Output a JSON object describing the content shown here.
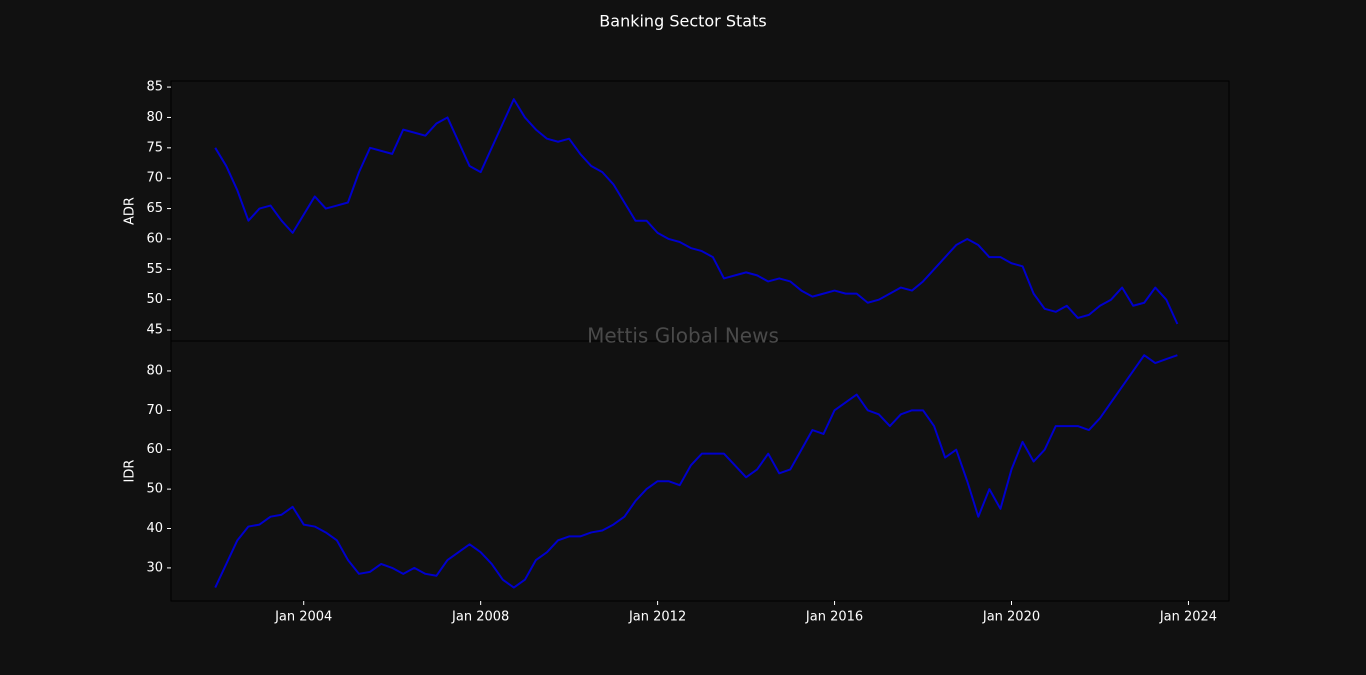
{
  "title": "Banking Sector Stats",
  "watermark": "Mettis Global News",
  "chart_data": [
    {
      "type": "line",
      "ylabel": "ADR",
      "x": [
        "2002-01",
        "2002-04",
        "2002-07",
        "2002-10",
        "2003-01",
        "2003-04",
        "2003-07",
        "2003-10",
        "2004-01",
        "2004-04",
        "2004-07",
        "2004-10",
        "2005-01",
        "2005-04",
        "2005-07",
        "2005-10",
        "2006-01",
        "2006-04",
        "2006-07",
        "2006-10",
        "2007-01",
        "2007-04",
        "2007-07",
        "2007-10",
        "2008-01",
        "2008-04",
        "2008-07",
        "2008-10",
        "2009-01",
        "2009-04",
        "2009-07",
        "2009-10",
        "2010-01",
        "2010-04",
        "2010-07",
        "2010-10",
        "2011-01",
        "2011-04",
        "2011-07",
        "2011-10",
        "2012-01",
        "2012-04",
        "2012-07",
        "2012-10",
        "2013-01",
        "2013-04",
        "2013-07",
        "2013-10",
        "2014-01",
        "2014-04",
        "2014-07",
        "2014-10",
        "2015-01",
        "2015-04",
        "2015-07",
        "2015-10",
        "2016-01",
        "2016-04",
        "2016-07",
        "2016-10",
        "2017-01",
        "2017-04",
        "2017-07",
        "2017-10",
        "2018-01",
        "2018-04",
        "2018-07",
        "2018-10",
        "2019-01",
        "2019-04",
        "2019-07",
        "2019-10",
        "2020-01",
        "2020-04",
        "2020-07",
        "2020-10",
        "2021-01",
        "2021-04",
        "2021-07",
        "2021-10",
        "2022-01",
        "2022-04",
        "2022-07",
        "2022-10",
        "2023-01",
        "2023-04",
        "2023-07",
        "2023-10"
      ],
      "series": [
        {
          "color": "#0000cd",
          "values": [
            75,
            72,
            68,
            63,
            65,
            65.5,
            63,
            61,
            64,
            67,
            65,
            65.5,
            66,
            71,
            75,
            74.5,
            74,
            78,
            77.5,
            77,
            79,
            80,
            76,
            72,
            71,
            75,
            79,
            83,
            80,
            78,
            76.5,
            76,
            76.5,
            74,
            72,
            71,
            69,
            66,
            63,
            63,
            61,
            60,
            59.5,
            58.5,
            58,
            57,
            53.5,
            54,
            54.5,
            54,
            53,
            53.5,
            53,
            51.5,
            50.5,
            51,
            51.5,
            51,
            51,
            49.5,
            50,
            51,
            52,
            51.5,
            53,
            55,
            57,
            59,
            60,
            59,
            57,
            57,
            56,
            55.5,
            51,
            48.5,
            48,
            49,
            47,
            47.5,
            49,
            50,
            52,
            49,
            49.5,
            52,
            50,
            46
          ]
        }
      ],
      "xlim": [
        "2001-01",
        "2024-12"
      ],
      "ylim": [
        43.2,
        86
      ],
      "yticks": [
        45,
        50,
        55,
        60,
        65,
        70,
        75,
        80,
        85
      ]
    },
    {
      "type": "line",
      "ylabel": "IDR",
      "x": [
        "2002-01",
        "2002-04",
        "2002-07",
        "2002-10",
        "2003-01",
        "2003-04",
        "2003-07",
        "2003-10",
        "2004-01",
        "2004-04",
        "2004-07",
        "2004-10",
        "2005-01",
        "2005-04",
        "2005-07",
        "2005-10",
        "2006-01",
        "2006-04",
        "2006-07",
        "2006-10",
        "2007-01",
        "2007-04",
        "2007-07",
        "2007-10",
        "2008-01",
        "2008-04",
        "2008-07",
        "2008-10",
        "2009-01",
        "2009-04",
        "2009-07",
        "2009-10",
        "2010-01",
        "2010-04",
        "2010-07",
        "2010-10",
        "2011-01",
        "2011-04",
        "2011-07",
        "2011-10",
        "2012-01",
        "2012-04",
        "2012-07",
        "2012-10",
        "2013-01",
        "2013-04",
        "2013-07",
        "2013-10",
        "2014-01",
        "2014-04",
        "2014-07",
        "2014-10",
        "2015-01",
        "2015-04",
        "2015-07",
        "2015-10",
        "2016-01",
        "2016-04",
        "2016-07",
        "2016-10",
        "2017-01",
        "2017-04",
        "2017-07",
        "2017-10",
        "2018-01",
        "2018-04",
        "2018-07",
        "2018-10",
        "2019-01",
        "2019-04",
        "2019-07",
        "2019-10",
        "2020-01",
        "2020-04",
        "2020-07",
        "2020-10",
        "2021-01",
        "2021-04",
        "2021-07",
        "2021-10",
        "2022-01",
        "2022-04",
        "2022-07",
        "2022-10",
        "2023-01",
        "2023-04",
        "2023-07",
        "2023-10"
      ],
      "series": [
        {
          "color": "#0000cd",
          "values": [
            25,
            31,
            37,
            40.5,
            41,
            43,
            43.5,
            45.5,
            41,
            40.5,
            39,
            37,
            32,
            28.5,
            29,
            31,
            30,
            28.5,
            30,
            28.5,
            28,
            32,
            34,
            36,
            34,
            31,
            27,
            25,
            27,
            32,
            34,
            37,
            38,
            38,
            39,
            39.5,
            41,
            43,
            47,
            50,
            52,
            52,
            51,
            56,
            59,
            59,
            59,
            56,
            53,
            55,
            59,
            54,
            55,
            60,
            65,
            64,
            70,
            72,
            74,
            70,
            69,
            66,
            69,
            70,
            70,
            66,
            58,
            60,
            52,
            43,
            50,
            45,
            55,
            62,
            57,
            60,
            66,
            66,
            66,
            65,
            68,
            72,
            76,
            80,
            84,
            82,
            83,
            84
          ]
        }
      ],
      "xlim": [
        "2001-01",
        "2024-12"
      ],
      "ylim": [
        21.6,
        87.6
      ],
      "yticks": [
        30,
        40,
        50,
        60,
        70,
        80
      ],
      "xticks": [
        {
          "value": "2004-01",
          "label": "Jan 2004"
        },
        {
          "value": "2008-01",
          "label": "Jan 2008"
        },
        {
          "value": "2012-01",
          "label": "Jan 2012"
        },
        {
          "value": "2016-01",
          "label": "Jan 2016"
        },
        {
          "value": "2020-01",
          "label": "Jan 2020"
        },
        {
          "value": "2024-01",
          "label": "Jan 2024"
        }
      ]
    }
  ]
}
